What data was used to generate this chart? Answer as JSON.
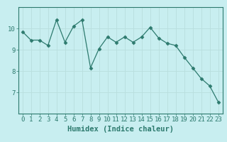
{
  "x": [
    0,
    1,
    2,
    3,
    4,
    5,
    6,
    7,
    8,
    9,
    10,
    11,
    12,
    13,
    14,
    15,
    16,
    17,
    18,
    19,
    20,
    21,
    22,
    23
  ],
  "y": [
    9.85,
    9.45,
    9.45,
    9.2,
    10.4,
    9.35,
    10.1,
    10.4,
    8.15,
    9.05,
    9.6,
    9.35,
    9.6,
    9.35,
    9.6,
    10.05,
    9.55,
    9.3,
    9.2,
    8.65,
    8.15,
    7.65,
    7.3,
    6.55
  ],
  "line_color": "#2d7a6e",
  "marker": "D",
  "marker_size": 2.5,
  "bg_color": "#c8eef0",
  "grid_color": "#b8dede",
  "axis_color": "#2d7a6e",
  "xlabel": "Humidex (Indice chaleur)",
  "xlim": [
    -0.5,
    23.5
  ],
  "ylim": [
    6.0,
    11.0
  ],
  "yticks": [
    7,
    8,
    9,
    10
  ],
  "xticks": [
    0,
    1,
    2,
    3,
    4,
    5,
    6,
    7,
    8,
    9,
    10,
    11,
    12,
    13,
    14,
    15,
    16,
    17,
    18,
    19,
    20,
    21,
    22,
    23
  ],
  "xlabel_fontsize": 7.5,
  "tick_fontsize": 6.5,
  "linewidth": 0.9
}
